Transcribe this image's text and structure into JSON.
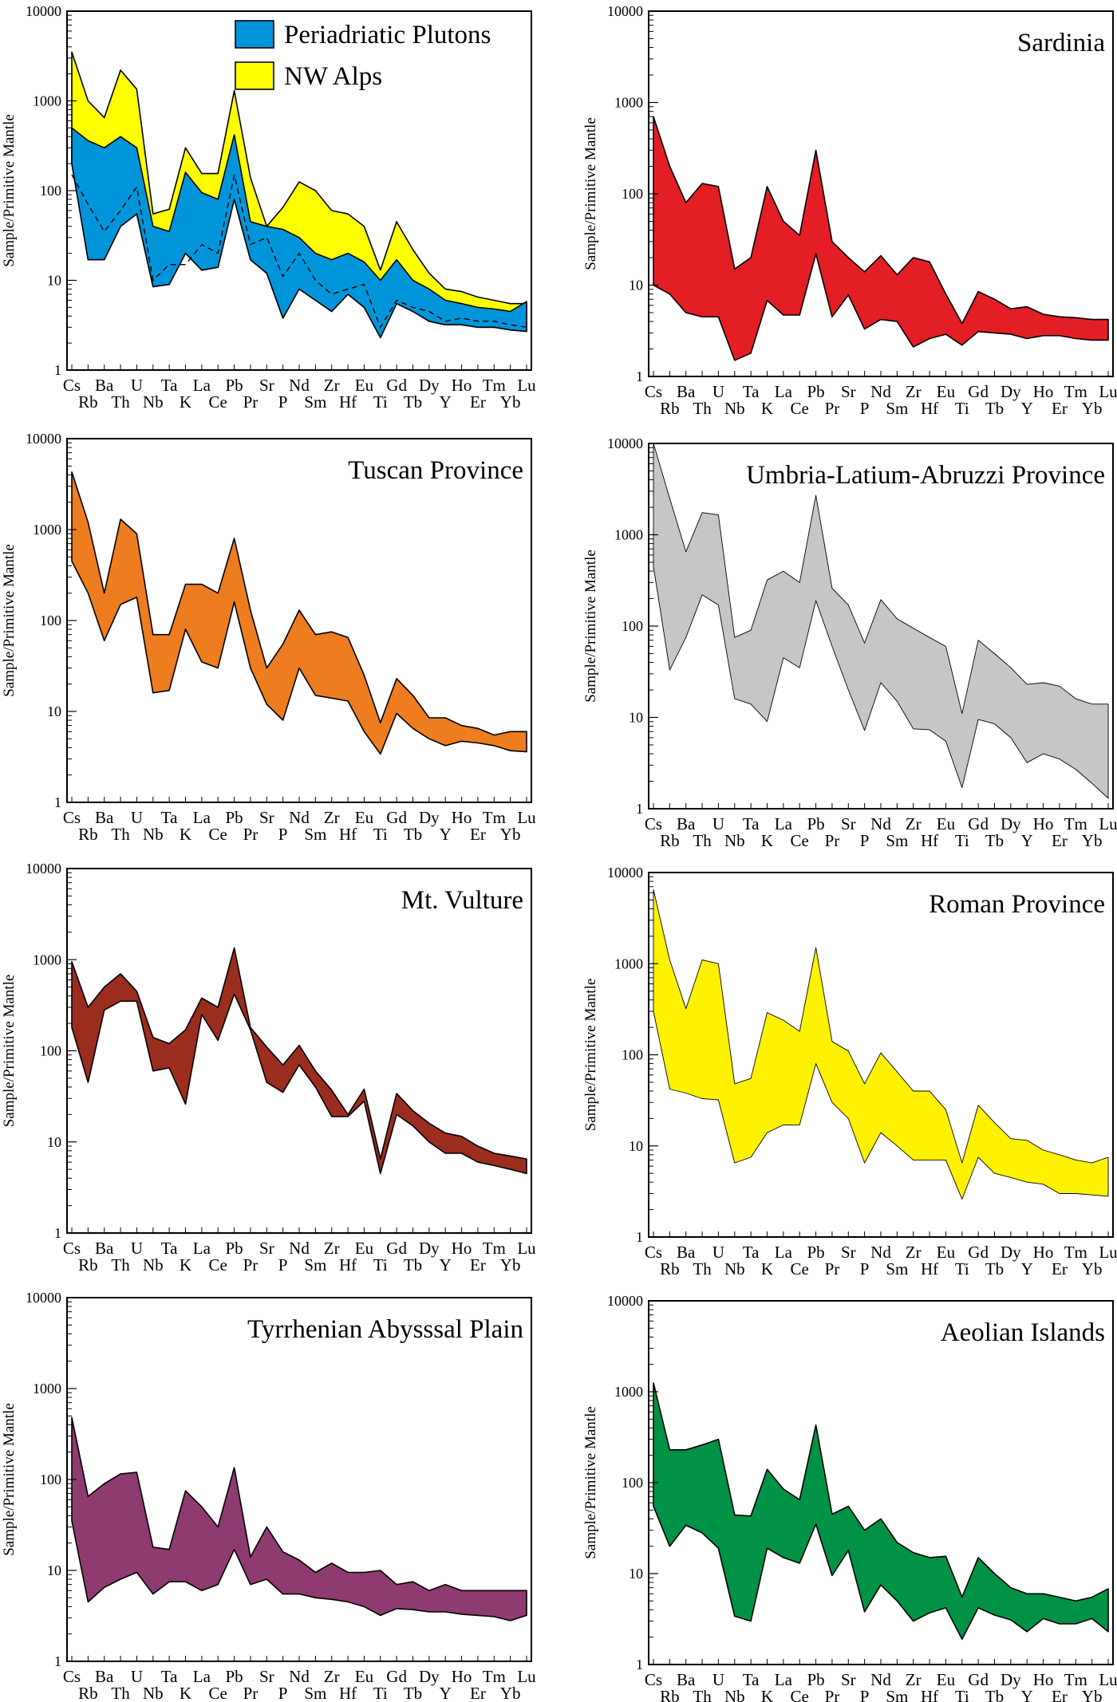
{
  "figure": {
    "ylabel": "Sample/Primitive Mantle",
    "y_tick_labels": [
      "1",
      "10",
      "100",
      "1000",
      "10000"
    ],
    "elements": [
      "Cs",
      "Rb",
      "Ba",
      "Th",
      "U",
      "Nb",
      "Ta",
      "K",
      "La",
      "Ce",
      "Pb",
      "Pr",
      "Sr",
      "P",
      "Nd",
      "Sm",
      "Zr",
      "Hf",
      "Eu",
      "Ti",
      "Gd",
      "Tb",
      "Dy",
      "Y",
      "Ho",
      "Er",
      "Tm",
      "Yb",
      "Lu"
    ]
  },
  "chart_data": [
    {
      "type": "area",
      "title": "",
      "ylabel": "Sample/Primitive Mantle",
      "yscale": "log",
      "ylim": [
        1,
        10000
      ],
      "categories": [
        "Cs",
        "Rb",
        "Ba",
        "Th",
        "U",
        "Nb",
        "Ta",
        "K",
        "La",
        "Ce",
        "Pb",
        "Pr",
        "Sr",
        "P",
        "Nd",
        "Sm",
        "Zr",
        "Hf",
        "Eu",
        "Ti",
        "Gd",
        "Tb",
        "Dy",
        "Y",
        "Ho",
        "Er",
        "Tm",
        "Yb",
        "Lu"
      ],
      "legend_position": "top-right",
      "series": [
        {
          "name": "NW Alps",
          "color": "#ffff00",
          "upper": [
            3500,
            1000,
            650,
            2200,
            1350,
            55,
            62,
            300,
            155,
            155,
            1300,
            140,
            40,
            65,
            125,
            100,
            60,
            55,
            40,
            13,
            45,
            22,
            12,
            8,
            7.5,
            6.5,
            6,
            5.5,
            5.5
          ],
          "lower": [
            200,
            17,
            17,
            40,
            55,
            8.5,
            9,
            20,
            13,
            14,
            80,
            17,
            12,
            3.8,
            8,
            6,
            4.5,
            7,
            5,
            2.3,
            5.5,
            4.5,
            3.5,
            3.2,
            3.2,
            3,
            3,
            2.8,
            2.7
          ]
        },
        {
          "name": "Periadriatic Plutons",
          "color": "#0095da",
          "upper": [
            500,
            360,
            300,
            400,
            300,
            40,
            35,
            160,
            95,
            80,
            420,
            45,
            40,
            37,
            30,
            20,
            17,
            20,
            16,
            10,
            17,
            10,
            8,
            6,
            5.5,
            5,
            4.8,
            4.5,
            5.8
          ],
          "lower": [
            200,
            17,
            17,
            40,
            55,
            8.5,
            9,
            20,
            13,
            14,
            80,
            17,
            12,
            3.8,
            8,
            6,
            4.5,
            7,
            5,
            2.3,
            5.5,
            4.5,
            3.5,
            3.2,
            3.2,
            3,
            3,
            2.8,
            2.7
          ],
          "median": [
            150,
            70,
            35,
            60,
            110,
            10,
            15,
            15,
            25,
            20,
            150,
            25,
            30,
            11,
            20,
            10,
            7,
            8,
            9,
            3,
            6,
            5,
            4.5,
            3.5,
            3.8,
            3.5,
            3.5,
            3.2,
            3
          ]
        }
      ]
    },
    {
      "type": "area",
      "title": "Sardinia",
      "ylabel": "Sample/Primitive Mantle",
      "yscale": "log",
      "ylim": [
        1,
        10000
      ],
      "categories": [
        "Cs",
        "Rb",
        "Ba",
        "Th",
        "U",
        "Nb",
        "Ta",
        "K",
        "La",
        "Ce",
        "Pb",
        "Pr",
        "Sr",
        "P",
        "Nd",
        "Sm",
        "Zr",
        "Hf",
        "Eu",
        "Ti",
        "Gd",
        "Tb",
        "Dy",
        "Y",
        "Ho",
        "Er",
        "Tm",
        "Yb",
        "Lu"
      ],
      "series": [
        {
          "color": "#e31e24",
          "upper": [
            700,
            200,
            80,
            130,
            120,
            15,
            20,
            120,
            50,
            35,
            300,
            30,
            20,
            14,
            21,
            13,
            20,
            18,
            8,
            3.8,
            8.5,
            7,
            5.5,
            5.8,
            4.8,
            4.5,
            4.4,
            4.2,
            4.2
          ],
          "lower": [
            10,
            8,
            5,
            4.5,
            4.5,
            1.5,
            1.8,
            6.8,
            4.7,
            4.7,
            22,
            4.5,
            7.8,
            3.3,
            4.2,
            4,
            2.1,
            2.6,
            2.9,
            2.2,
            3.1,
            3,
            2.9,
            2.6,
            2.8,
            2.8,
            2.6,
            2.5,
            2.5
          ]
        }
      ]
    },
    {
      "type": "area",
      "title": "Tuscan Province",
      "ylabel": "Sample/Primitive Mantle",
      "yscale": "log",
      "ylim": [
        1,
        10000
      ],
      "categories": [
        "Cs",
        "Rb",
        "Ba",
        "Th",
        "U",
        "Nb",
        "Ta",
        "K",
        "La",
        "Ce",
        "Pb",
        "Pr",
        "Sr",
        "P",
        "Nd",
        "Sm",
        "Zr",
        "Hf",
        "Eu",
        "Ti",
        "Gd",
        "Tb",
        "Dy",
        "Y",
        "Ho",
        "Er",
        "Tm",
        "Yb",
        "Lu"
      ],
      "series": [
        {
          "color": "#ee7d1f",
          "upper": [
            4300,
            1200,
            200,
            1300,
            900,
            70,
            70,
            250,
            250,
            200,
            800,
            130,
            30,
            55,
            130,
            70,
            75,
            65,
            25,
            7.5,
            23,
            15,
            8.5,
            8.5,
            7,
            6.5,
            5.5,
            6,
            6
          ],
          "lower": [
            450,
            200,
            60,
            150,
            180,
            16,
            17,
            80,
            35,
            30,
            160,
            30,
            12,
            8,
            30,
            15,
            14,
            13,
            6,
            3.4,
            9.5,
            6.5,
            5,
            4.2,
            4.7,
            4.5,
            4.2,
            3.7,
            3.6
          ]
        }
      ]
    },
    {
      "type": "area",
      "title": "Umbria-Latium-Abruzzi Province",
      "ylabel": "Sample/Primitive Mantle",
      "yscale": "log",
      "ylim": [
        1,
        10000
      ],
      "categories": [
        "Cs",
        "Rb",
        "Ba",
        "Th",
        "U",
        "Nb",
        "Ta",
        "K",
        "La",
        "Ce",
        "Pb",
        "Pr",
        "Sr",
        "P",
        "Nd",
        "Sm",
        "Zr",
        "Hf",
        "Eu",
        "Ti",
        "Gd",
        "Tb",
        "Dy",
        "Y",
        "Ho",
        "Er",
        "Tm",
        "Yb",
        "Lu"
      ],
      "series": [
        {
          "color": "#c6c6c6",
          "upper": [
            10000,
            2500,
            650,
            1750,
            1650,
            75,
            90,
            320,
            400,
            300,
            2700,
            260,
            170,
            65,
            195,
            120,
            95,
            75,
            60,
            11,
            70,
            50,
            35,
            23,
            24,
            22,
            16,
            14,
            14
          ],
          "lower": [
            450,
            33,
            75,
            220,
            170,
            16,
            14,
            9,
            45,
            35,
            190,
            60,
            20,
            7.2,
            24,
            15,
            7.5,
            7.3,
            5.5,
            1.7,
            9.5,
            8.5,
            6,
            3.2,
            4,
            3.5,
            2.7,
            1.9,
            1.3
          ]
        }
      ]
    },
    {
      "type": "area",
      "title": "Mt. Vulture",
      "ylabel": "Sample/Primitive Mantle",
      "yscale": "log",
      "ylim": [
        1,
        10000
      ],
      "categories": [
        "Cs",
        "Rb",
        "Ba",
        "Th",
        "U",
        "Nb",
        "Ta",
        "K",
        "La",
        "Ce",
        "Pb",
        "Pr",
        "Sr",
        "P",
        "Nd",
        "Sm",
        "Zr",
        "Hf",
        "Eu",
        "Ti",
        "Gd",
        "Tb",
        "Dy",
        "Y",
        "Ho",
        "Er",
        "Tm",
        "Yb",
        "Lu"
      ],
      "series": [
        {
          "color": "#9b2d1f",
          "upper": [
            950,
            300,
            500,
            700,
            450,
            140,
            120,
            170,
            380,
            300,
            1350,
            180,
            110,
            70,
            115,
            60,
            37,
            20,
            38,
            6.5,
            34,
            22,
            16,
            12.5,
            11.5,
            9,
            7.5,
            7,
            6.5
          ],
          "lower": [
            180,
            45,
            280,
            350,
            350,
            60,
            65,
            26,
            250,
            130,
            420,
            170,
            45,
            35,
            70,
            40,
            19,
            19,
            28,
            4.5,
            20,
            15,
            10,
            7.5,
            7.5,
            6,
            5.5,
            5,
            4.5
          ]
        }
      ]
    },
    {
      "type": "area",
      "title": "Roman Province",
      "ylabel": "Sample/Primitive Mantle",
      "yscale": "log",
      "ylim": [
        1,
        10000
      ],
      "categories": [
        "Cs",
        "Rb",
        "Ba",
        "Th",
        "U",
        "Nb",
        "Ta",
        "K",
        "La",
        "Ce",
        "Pb",
        "Pr",
        "Sr",
        "P",
        "Nd",
        "Sm",
        "Zr",
        "Hf",
        "Eu",
        "Ti",
        "Gd",
        "Tb",
        "Dy",
        "Y",
        "Ho",
        "Er",
        "Tm",
        "Yb",
        "Lu"
      ],
      "series": [
        {
          "color": "#fff200",
          "upper": [
            6500,
            1100,
            320,
            1100,
            1000,
            48,
            55,
            290,
            240,
            180,
            1500,
            140,
            110,
            48,
            105,
            65,
            40,
            40,
            25,
            6.5,
            28,
            18,
            12,
            11.5,
            9,
            8,
            7,
            6.5,
            7.5
          ],
          "lower": [
            300,
            42,
            38,
            33,
            32,
            6.5,
            7.5,
            14,
            17,
            17,
            80,
            30,
            20,
            6.5,
            14,
            10,
            7,
            7,
            7,
            2.6,
            7.5,
            5,
            4.5,
            4,
            3.8,
            3,
            3,
            2.9,
            2.8
          ]
        }
      ]
    },
    {
      "type": "area",
      "title": "Tyrrhenian Abysssal Plain",
      "ylabel": "Sample/Primitive Mantle",
      "yscale": "log",
      "ylim": [
        1,
        10000
      ],
      "categories": [
        "Cs",
        "Rb",
        "Ba",
        "Th",
        "U",
        "Nb",
        "Ta",
        "K",
        "La",
        "Ce",
        "Pb",
        "Pr",
        "Sr",
        "P",
        "Nd",
        "Sm",
        "Zr",
        "Hf",
        "Eu",
        "Ti",
        "Gd",
        "Tb",
        "Dy",
        "Y",
        "Ho",
        "Er",
        "Tm",
        "Yb",
        "Lu"
      ],
      "series": [
        {
          "color": "#8e3b71",
          "upper": [
            480,
            65,
            90,
            115,
            120,
            18,
            17,
            75,
            50,
            30,
            135,
            14,
            30,
            16,
            13,
            9.5,
            12,
            9.5,
            9.5,
            10,
            7,
            7.5,
            6,
            7,
            6,
            6,
            6,
            6,
            6
          ],
          "lower": [
            35,
            4.5,
            6.5,
            8,
            9.5,
            5.5,
            7.5,
            7.5,
            6,
            7,
            17,
            7,
            8,
            5.5,
            5.5,
            5,
            4.8,
            4.5,
            4,
            3.2,
            3.8,
            3.7,
            3.5,
            3.5,
            3.3,
            3.2,
            3.1,
            2.8,
            3.2
          ]
        }
      ]
    },
    {
      "type": "area",
      "title": "Aeolian Islands",
      "ylabel": "Sample/Primitive Mantle",
      "yscale": "log",
      "ylim": [
        1,
        10000
      ],
      "categories": [
        "Cs",
        "Rb",
        "Ba",
        "Th",
        "U",
        "Nb",
        "Ta",
        "K",
        "La",
        "Ce",
        "Pb",
        "Pr",
        "Sr",
        "P",
        "Nd",
        "Sm",
        "Zr",
        "Hf",
        "Eu",
        "Ti",
        "Gd",
        "Tb",
        "Dy",
        "Y",
        "Ho",
        "Er",
        "Tm",
        "Yb",
        "Lu"
      ],
      "series": [
        {
          "color": "#009245",
          "upper": [
            1250,
            230,
            230,
            260,
            300,
            44,
            43,
            140,
            85,
            65,
            430,
            45,
            55,
            30,
            40,
            22,
            17,
            15,
            15.5,
            5.5,
            15,
            10,
            7,
            6,
            6,
            5.5,
            5,
            5.5,
            6.8
          ],
          "lower": [
            55,
            20,
            34,
            28,
            19,
            3.4,
            3,
            19,
            15,
            13,
            35,
            9.5,
            18,
            3.8,
            7.5,
            5,
            3,
            3.7,
            4.2,
            1.9,
            4.2,
            3.5,
            3.1,
            2.3,
            3.2,
            2.8,
            2.8,
            3.2,
            2.3
          ]
        }
      ]
    }
  ]
}
